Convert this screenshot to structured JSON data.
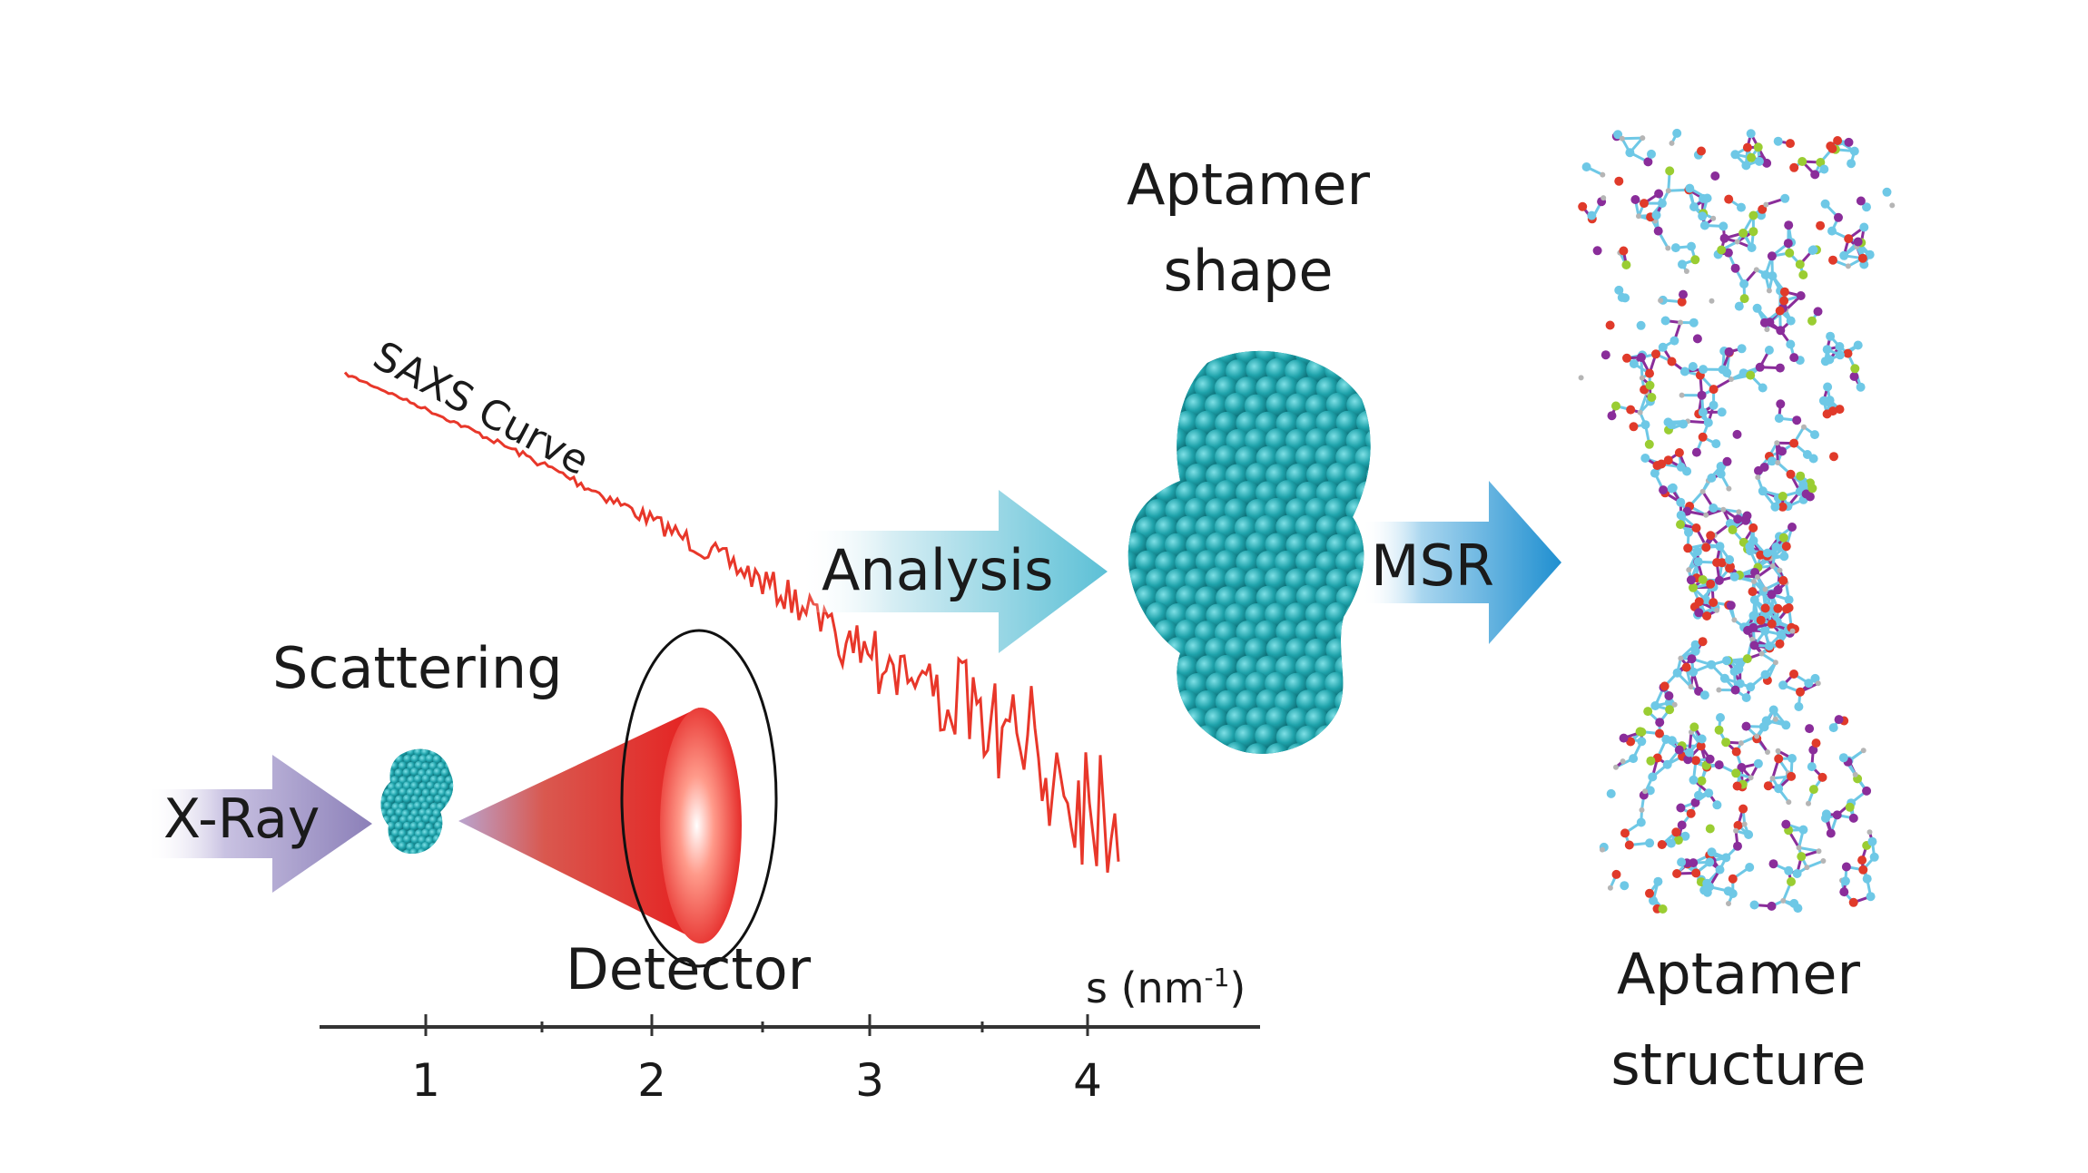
{
  "labels": {
    "xray": "X-Ray",
    "scattering": "Scattering",
    "detector": "Detector",
    "saxs_curve": "SAXS Curve",
    "analysis": "Analysis",
    "aptamer_shape_line1": "Aptamer",
    "aptamer_shape_line2": "shape",
    "msr": "MSR",
    "aptamer_structure_line1": "Aptamer",
    "aptamer_structure_line2": "structure"
  },
  "axis": {
    "label_prefix": "s (nm",
    "label_sup": "-1",
    "label_suffix": ")",
    "ticks": [
      "1",
      "2",
      "3",
      "4"
    ]
  },
  "colors": {
    "curve": "#e8372a",
    "particle": "#1fa3ab",
    "xray_arrow": "#8b7fb8",
    "analysis_arrow": "#5cc0d6",
    "msr_arrow": "#1f8fd0",
    "cone": "#e61e1e",
    "atom_carbon": "#6ec8e6",
    "atom_nitrogen": "#8a2d9a",
    "atom_oxygen": "#e03a2a",
    "atom_phosphorus": "#9acd32",
    "atom_hydrogen": "#b5b5b5"
  }
}
